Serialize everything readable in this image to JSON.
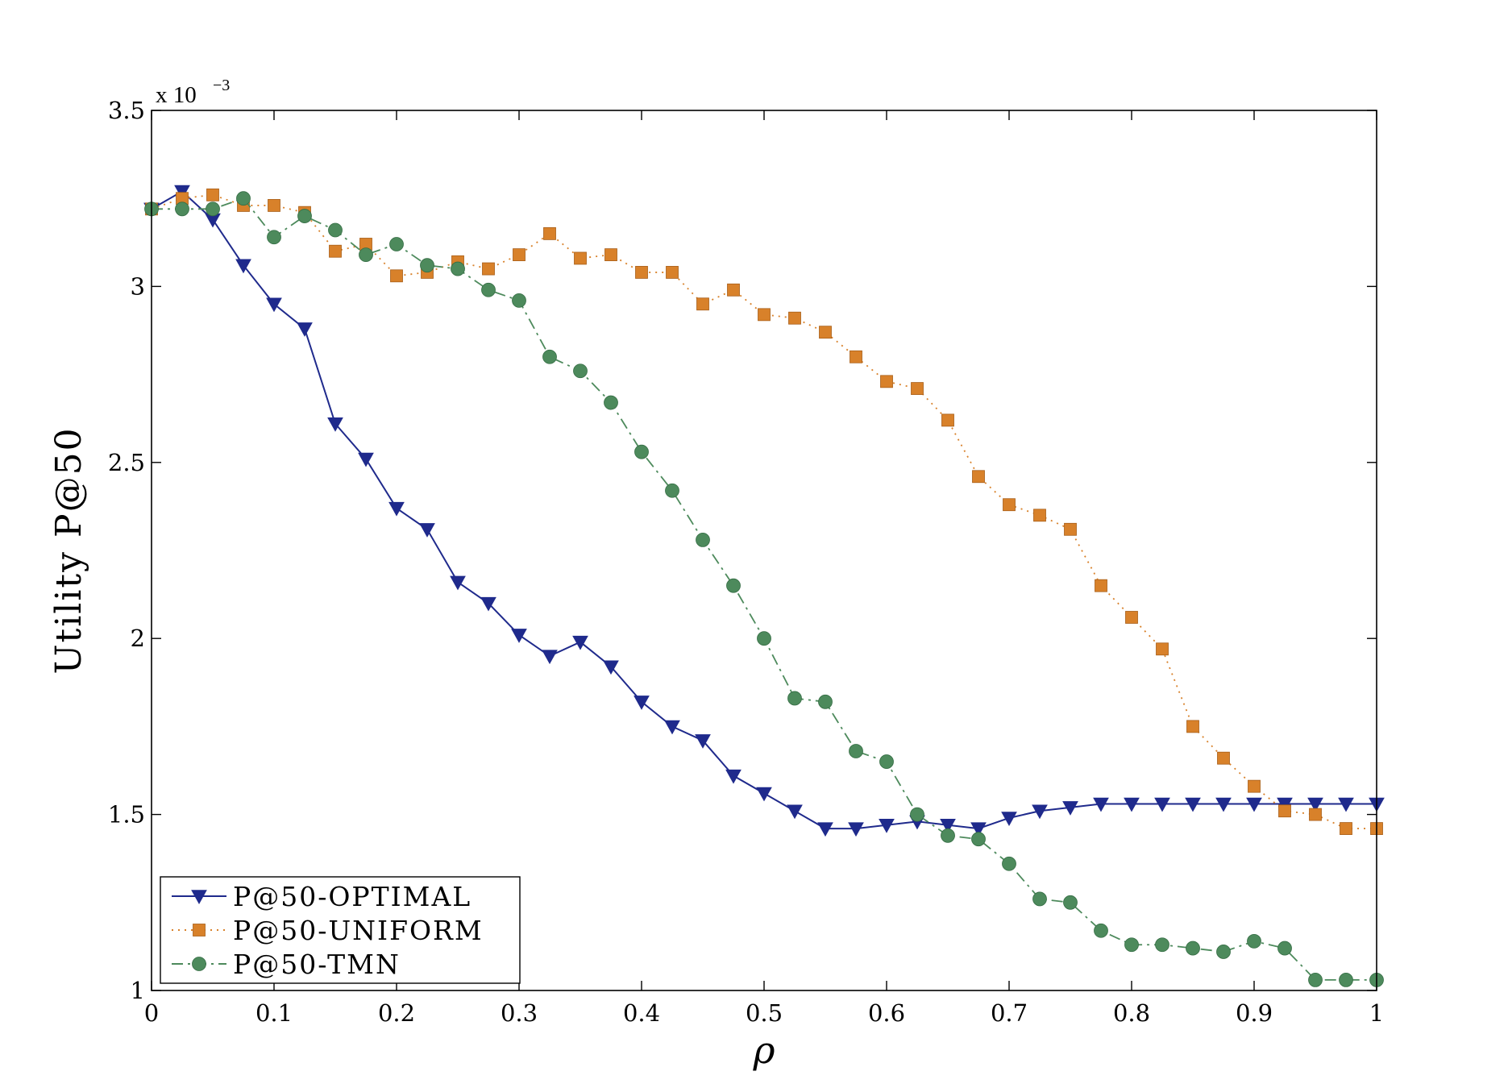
{
  "chart_data": {
    "type": "line",
    "title": "",
    "xlabel": "ρ",
    "ylabel": "Utility P@50",
    "y_multiplier": {
      "prefix": "x 10",
      "exponent": "−3"
    },
    "xlim": [
      0,
      1
    ],
    "ylim": [
      1.0,
      3.5
    ],
    "xticks": [
      0,
      0.1,
      0.2,
      0.3,
      0.4,
      0.5,
      0.6,
      0.7,
      0.8,
      0.9,
      1.0
    ],
    "xtick_labels": [
      "0",
      "0.1",
      "0.2",
      "0.3",
      "0.4",
      "0.5",
      "0.6",
      "0.7",
      "0.8",
      "0.9",
      "1"
    ],
    "yticks": [
      1.0,
      1.5,
      2.0,
      2.5,
      3.0,
      3.5
    ],
    "ytick_labels": [
      "1",
      "1.5",
      "2",
      "2.5",
      "3",
      "3.5"
    ],
    "legend_position": "bottom-left",
    "x": [
      0,
      0.025,
      0.05,
      0.075,
      0.1,
      0.125,
      0.15,
      0.175,
      0.2,
      0.225,
      0.25,
      0.275,
      0.3,
      0.325,
      0.35,
      0.375,
      0.4,
      0.425,
      0.45,
      0.475,
      0.5,
      0.525,
      0.55,
      0.575,
      0.6,
      0.625,
      0.65,
      0.675,
      0.7,
      0.725,
      0.75,
      0.775,
      0.8,
      0.825,
      0.85,
      0.875,
      0.9,
      0.925,
      0.95,
      0.975,
      1.0
    ],
    "series": [
      {
        "name": "P@50-OPTIMAL",
        "color": "#1f2a8c",
        "marker": "triangle-down",
        "line": "solid",
        "values": [
          3.22,
          3.27,
          3.19,
          3.06,
          2.95,
          2.88,
          2.61,
          2.51,
          2.37,
          2.31,
          2.16,
          2.1,
          2.01,
          1.95,
          1.99,
          1.92,
          1.82,
          1.75,
          1.71,
          1.61,
          1.56,
          1.51,
          1.46,
          1.46,
          1.47,
          1.48,
          1.47,
          1.46,
          1.49,
          1.51,
          1.52,
          1.53,
          1.53,
          1.53,
          1.53,
          1.53,
          1.53,
          1.53,
          1.53,
          1.53,
          1.53
        ]
      },
      {
        "name": "P@50-UNIFORM",
        "color": "#d8812a",
        "marker": "square",
        "line": "dotted",
        "values": [
          3.22,
          3.25,
          3.26,
          3.23,
          3.23,
          3.21,
          3.1,
          3.12,
          3.03,
          3.04,
          3.07,
          3.05,
          3.09,
          3.15,
          3.08,
          3.09,
          3.04,
          3.04,
          2.95,
          2.99,
          2.92,
          2.91,
          2.87,
          2.8,
          2.73,
          2.71,
          2.62,
          2.46,
          2.38,
          2.35,
          2.31,
          2.15,
          2.06,
          1.97,
          1.75,
          1.66,
          1.58,
          1.51,
          1.5,
          1.46,
          1.46
        ]
      },
      {
        "name": "P@50-TMN",
        "color": "#4d8a5c",
        "marker": "circle",
        "line": "dash-dot",
        "values": [
          3.22,
          3.22,
          3.22,
          3.25,
          3.14,
          3.2,
          3.16,
          3.09,
          3.12,
          3.06,
          3.05,
          2.99,
          2.96,
          2.8,
          2.76,
          2.67,
          2.53,
          2.42,
          2.28,
          2.15,
          2.0,
          1.83,
          1.82,
          1.68,
          1.65,
          1.5,
          1.44,
          1.43,
          1.36,
          1.26,
          1.25,
          1.17,
          1.13,
          1.13,
          1.12,
          1.11,
          1.14,
          1.12,
          1.03,
          1.03,
          1.03
        ]
      }
    ]
  }
}
